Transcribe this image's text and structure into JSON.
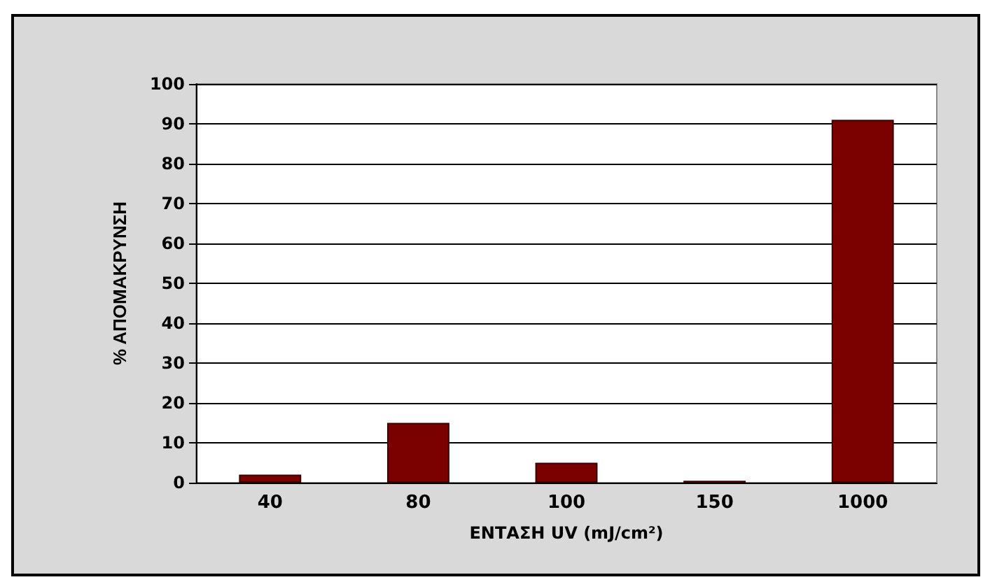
{
  "chart_data": {
    "type": "bar",
    "xlabel": "ΕΝΤΑΣΗ UV (mJ/cm²)",
    "ylabel": "% ΑΠΟΜΑΚΡΥΝΣΗ",
    "categories": [
      "40",
      "80",
      "100",
      "150",
      "1000"
    ],
    "values": [
      2,
      15,
      5,
      0.5,
      91
    ],
    "color": "#7b0000",
    "ylim": [
      0,
      100
    ],
    "yticks": [
      0,
      10,
      20,
      30,
      40,
      50,
      60,
      70,
      80,
      90,
      100
    ],
    "grid": "y"
  }
}
